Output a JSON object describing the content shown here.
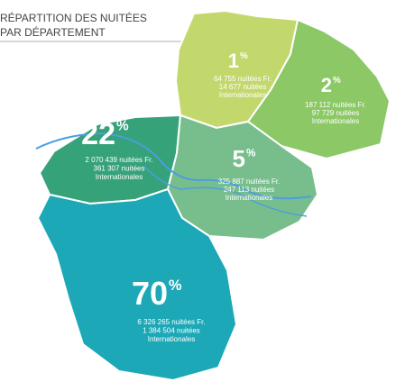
{
  "header": {
    "title": [
      "RÉPARTITION DES NUITÉES",
      "PAR DÉPARTEMENT"
    ]
  },
  "regions": [
    {
      "percent": "1",
      "sign": "%",
      "lines": [
        "64 755 nuitées Fr.",
        "14 677 nuitées",
        "Internationales"
      ],
      "color": "#c3d86c"
    },
    {
      "percent": "2",
      "sign": "%",
      "lines": [
        "187 112 nuitées Fr.",
        "97 729 nuitées",
        "Internationales"
      ],
      "color": "#8cc866"
    },
    {
      "percent": "22",
      "sign": "%",
      "lines": [
        "2 070 439 nuitées Fr.",
        "361 307 nuitées",
        "Internationales"
      ],
      "color": "#36a27a"
    },
    {
      "percent": "5",
      "sign": "%",
      "lines": [
        "325 887 nuitées Fr.",
        "247 113 nuitées",
        "Internationales"
      ],
      "color": "#78be8c"
    },
    {
      "percent": "70",
      "sign": "%",
      "lines": [
        "6 326 265 nuitées Fr.",
        "1 384 504 nuitées",
        "Internationales"
      ],
      "color": "#1ca8b6"
    }
  ]
}
